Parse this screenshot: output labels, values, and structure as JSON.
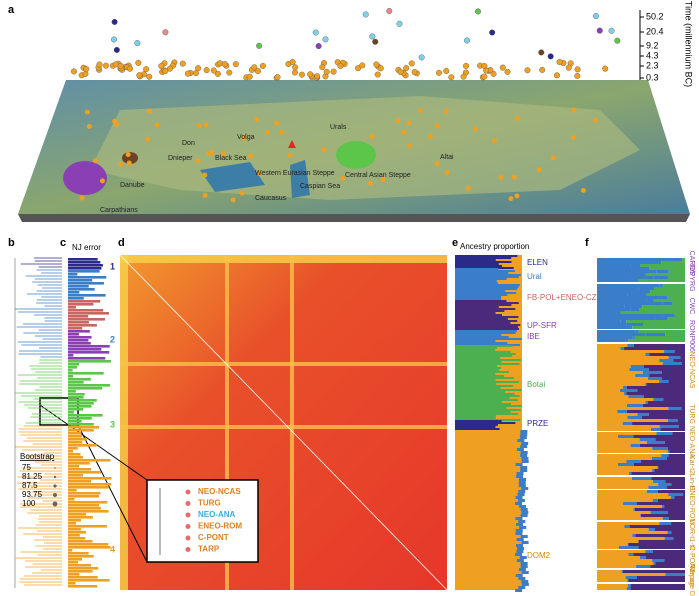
{
  "panel_a": {
    "label": "a",
    "time_axis_label": "Time (millennium BC)",
    "time_ticks": [
      50.2,
      20.4,
      9.2,
      4.3,
      2.3,
      0.3
    ],
    "map_labels": [
      "Urals",
      "Volga",
      "Don",
      "Dnieper",
      "Danube",
      "Carpathians",
      "Black Sea",
      "Caucasus",
      "Caspian Sea",
      "Western Eurasian Steppe",
      "Central Asian Steppe",
      "Altai"
    ]
  },
  "panel_b": {
    "label": "b",
    "bootstrap_title": "Bootstrap",
    "bootstrap_values": [
      75,
      81.25,
      87.5,
      93.75,
      100
    ]
  },
  "panel_c": {
    "label": "c",
    "title": "NJ error",
    "clusters": [
      "1",
      "2",
      "3",
      "4"
    ]
  },
  "panel_d": {
    "label": "d",
    "inset_labels": [
      "NEO-NCAS",
      "TURG",
      "NEO-ANA",
      "ENEO-ROM",
      "C-PONT",
      "TARP"
    ]
  },
  "panel_e": {
    "label": "e",
    "title": "Ancestry proportion",
    "labels": [
      "ELEN",
      "Ural",
      "FB-POL+ENEO-CZE",
      "UP-SFR",
      "IBE",
      "Botai",
      "PRZE",
      "DOM2"
    ]
  },
  "panel_f": {
    "label": "f",
    "labels": [
      "CAROS",
      "FR/PYRG",
      "CWC",
      "RONP006",
      "NEO-NCAS",
      "TURG",
      "NEO-ANA",
      "Kar-t2",
      "Lin-t1",
      "ENEO-ROM",
      "LOR-t1-t2",
      "C-PONT",
      "Tarpan",
      "Average DOM2"
    ]
  }
}
